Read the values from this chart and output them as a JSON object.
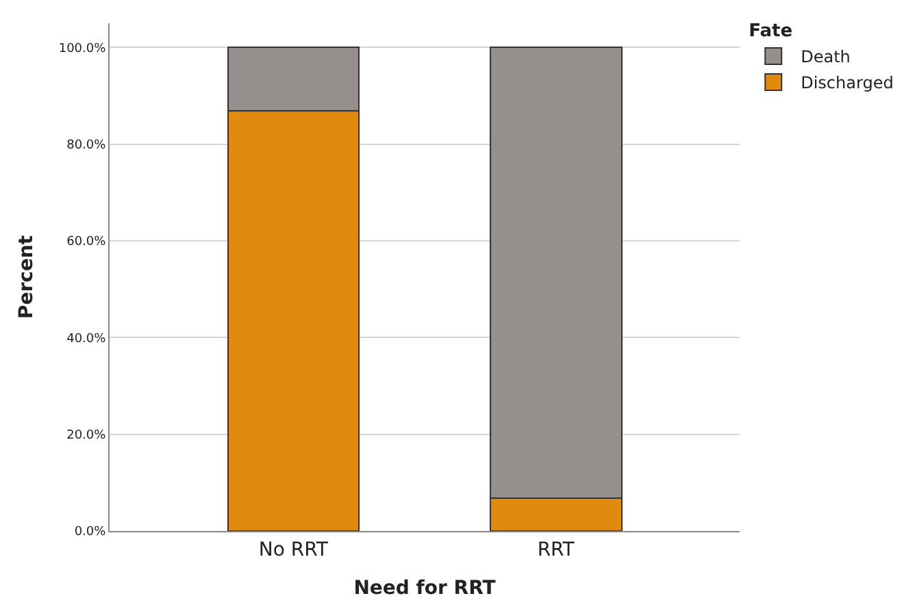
{
  "chart_data": {
    "type": "bar",
    "stacked": true,
    "xlabel": "Need for RRT",
    "ylabel": "Percent",
    "legend_title": "Fate",
    "categories": [
      "No RRT",
      "RRT"
    ],
    "series": [
      {
        "name": "Discharged",
        "color": "#e08a10",
        "values": [
          86.9,
          6.8
        ]
      },
      {
        "name": "Death",
        "color": "#958f8e",
        "values": [
          13.1,
          93.2
        ]
      }
    ],
    "ylim": [
      0,
      105
    ],
    "yticks": [
      {
        "value": 0,
        "label": "0.0%"
      },
      {
        "value": 20,
        "label": "20.0%"
      },
      {
        "value": 40,
        "label": "40.0%"
      },
      {
        "value": 60,
        "label": "60.0%"
      },
      {
        "value": 80,
        "label": "80.0%"
      },
      {
        "value": 100,
        "label": "100.0%"
      }
    ],
    "grid": "y",
    "legend": "top right"
  }
}
